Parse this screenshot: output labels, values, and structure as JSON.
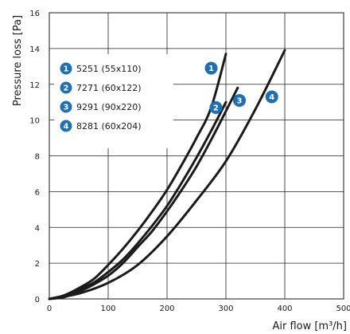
{
  "chart_data": {
    "type": "line",
    "title": "",
    "xlabel": "Air flow [m³/h]",
    "ylabel": "Pressure loss [Pa]",
    "xlim": [
      0,
      500
    ],
    "ylim": [
      0,
      16
    ],
    "x_ticks": [
      0,
      100,
      200,
      300,
      400,
      500
    ],
    "y_ticks": [
      0,
      2,
      4,
      6,
      8,
      10,
      12,
      14,
      16
    ],
    "grid": true,
    "legend_position": "top-left",
    "line_color": "#1a1a1a",
    "badge_color": "#1f6fb5",
    "series": [
      {
        "name": "5251 (55x110)",
        "badge": "1",
        "points": [
          [
            0,
            0
          ],
          [
            25,
            0.2
          ],
          [
            50,
            0.6
          ],
          [
            75,
            1.1
          ],
          [
            100,
            1.9
          ],
          [
            125,
            2.8
          ],
          [
            150,
            3.8
          ],
          [
            175,
            4.9
          ],
          [
            200,
            6.1
          ],
          [
            225,
            7.5
          ],
          [
            250,
            9.0
          ],
          [
            275,
            10.7
          ],
          [
            300,
            13.7
          ]
        ]
      },
      {
        "name": "7271 (60x122)",
        "badge": "2",
        "points": [
          [
            0,
            0
          ],
          [
            25,
            0.15
          ],
          [
            50,
            0.5
          ],
          [
            75,
            0.9
          ],
          [
            100,
            1.5
          ],
          [
            125,
            2.2
          ],
          [
            150,
            3.1
          ],
          [
            175,
            4.1
          ],
          [
            200,
            5.2
          ],
          [
            225,
            6.5
          ],
          [
            250,
            7.9
          ],
          [
            275,
            9.4
          ],
          [
            300,
            11.0
          ]
        ]
      },
      {
        "name": "9291 (90x220)",
        "badge": "3",
        "points": [
          [
            0,
            0
          ],
          [
            25,
            0.1
          ],
          [
            50,
            0.4
          ],
          [
            75,
            0.8
          ],
          [
            100,
            1.3
          ],
          [
            125,
            2.0
          ],
          [
            150,
            2.9
          ],
          [
            175,
            3.8
          ],
          [
            200,
            4.9
          ],
          [
            225,
            6.1
          ],
          [
            250,
            7.4
          ],
          [
            275,
            8.9
          ],
          [
            300,
            10.5
          ],
          [
            320,
            11.8
          ]
        ]
      },
      {
        "name": "8281 (60x204)",
        "badge": "4",
        "points": [
          [
            0,
            0
          ],
          [
            50,
            0.3
          ],
          [
            100,
            0.9
          ],
          [
            150,
            1.9
          ],
          [
            200,
            3.5
          ],
          [
            250,
            5.5
          ],
          [
            300,
            7.7
          ],
          [
            350,
            10.6
          ],
          [
            400,
            13.9
          ]
        ]
      }
    ],
    "badge_labels": [
      {
        "badge": "1",
        "x": 275,
        "y": 12.9
      },
      {
        "badge": "2",
        "x": 283,
        "y": 10.7
      },
      {
        "badge": "3",
        "x": 323,
        "y": 11.1
      },
      {
        "badge": "4",
        "x": 378,
        "y": 11.3
      }
    ]
  }
}
